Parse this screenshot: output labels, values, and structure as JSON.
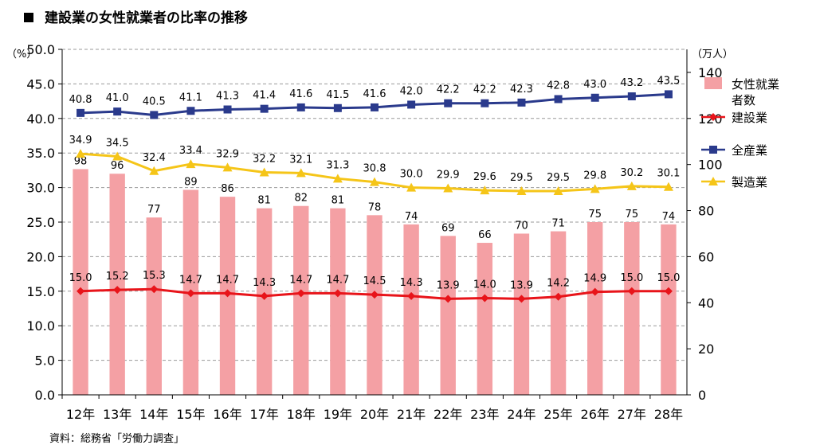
{
  "title": "建設業の女性就業者の比率の推移",
  "source": "資料：総務省「労働力調査」",
  "chart_data": {
    "type": "bar",
    "categories": [
      "12年",
      "13年",
      "14年",
      "15年",
      "16年",
      "17年",
      "18年",
      "19年",
      "20年",
      "21年",
      "22年",
      "23年",
      "24年",
      "25年",
      "26年",
      "27年",
      "28年"
    ],
    "left_axis": {
      "unit": "（%）",
      "ylim": [
        0,
        50
      ],
      "ticks": [
        "0.0",
        "5.0",
        "10.0",
        "15.0",
        "20.0",
        "25.0",
        "30.0",
        "35.0",
        "40.0",
        "45.0",
        "50.0"
      ]
    },
    "right_axis": {
      "unit": "（万人）",
      "ylim": [
        0,
        150
      ],
      "ticks": [
        "0",
        "20",
        "40",
        "60",
        "80",
        "100",
        "120",
        "140"
      ]
    },
    "grid": true,
    "legend_position": "right",
    "series": [
      {
        "name": "女性就業者数",
        "type": "bar",
        "axis": "right",
        "color": "#f4a0a4",
        "values": [
          98,
          96,
          77,
          89,
          86,
          81,
          82,
          81,
          78,
          74,
          69,
          66,
          70,
          71,
          75,
          75,
          74
        ],
        "labels": [
          "98",
          "96",
          "77",
          "89",
          "86",
          "81",
          "82",
          "81",
          "78",
          "74",
          "69",
          "66",
          "70",
          "71",
          "75",
          "75",
          "74"
        ]
      },
      {
        "name": "建設業",
        "type": "line",
        "axis": "left",
        "color": "#e8141a",
        "marker": "diamond",
        "values": [
          15.0,
          15.2,
          15.3,
          14.7,
          14.7,
          14.3,
          14.7,
          14.7,
          14.5,
          14.3,
          13.9,
          14.0,
          13.9,
          14.2,
          14.9,
          15.0,
          15.0
        ],
        "labels": [
          "15.0",
          "15.2",
          "15.3",
          "14.7",
          "14.7",
          "14.3",
          "14.7",
          "14.7",
          "14.5",
          "14.3",
          "13.9",
          "14.0",
          "13.9",
          "14.2",
          "14.9",
          "15.0",
          "15.0"
        ]
      },
      {
        "name": "全産業",
        "type": "line",
        "axis": "left",
        "color": "#2a3a8c",
        "marker": "square",
        "values": [
          40.8,
          41.0,
          40.5,
          41.1,
          41.3,
          41.4,
          41.6,
          41.5,
          41.6,
          42.0,
          42.2,
          42.2,
          42.3,
          42.8,
          43.0,
          43.2,
          43.5
        ],
        "labels": [
          "40.8",
          "41.0",
          "40.5",
          "41.1",
          "41.3",
          "41.4",
          "41.6",
          "41.5",
          "41.6",
          "42.0",
          "42.2",
          "42.2",
          "42.3",
          "42.8",
          "43.0",
          "43.2",
          "43.5"
        ]
      },
      {
        "name": "製造業",
        "type": "line",
        "axis": "left",
        "color": "#f5c518",
        "marker": "triangle",
        "values": [
          34.9,
          34.5,
          32.4,
          33.4,
          32.9,
          32.2,
          32.1,
          31.3,
          30.8,
          30.0,
          29.9,
          29.6,
          29.5,
          29.5,
          29.8,
          30.2,
          30.1
        ],
        "labels": [
          "34.9",
          "34.5",
          "32.4",
          "33.4",
          "32.9",
          "32.2",
          "32.1",
          "31.3",
          "30.8",
          "30.0",
          "29.9",
          "29.6",
          "29.5",
          "29.5",
          "29.8",
          "30.2",
          "30.1"
        ]
      }
    ],
    "legend": [
      {
        "name_lines": [
          "女性就業",
          "者数"
        ],
        "color": "#f4a0a4",
        "marker": "bar"
      },
      {
        "name_lines": [
          "建設業"
        ],
        "color": "#e8141a",
        "marker": "diamond"
      },
      {
        "name_lines": [
          "全産業"
        ],
        "color": "#2a3a8c",
        "marker": "square"
      },
      {
        "name_lines": [
          "製造業"
        ],
        "color": "#f5c518",
        "marker": "triangle"
      }
    ]
  }
}
